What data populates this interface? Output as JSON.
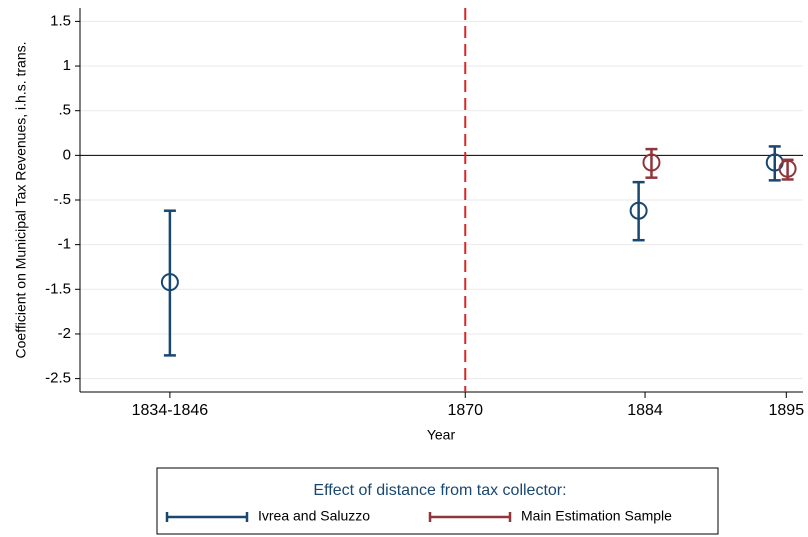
{
  "chart_data": {
    "type": "errorbar",
    "y_label": "Coefficient on Municipal Tax Revenues, i.h.s. trans.",
    "x_label": "Year",
    "xlim": [
      1840,
      1896.3
    ],
    "xticks": [
      {
        "value": 1847,
        "label": "1834-1846"
      },
      1870,
      1884,
      1895
    ],
    "ylim": [
      -2.65,
      1.65
    ],
    "yticks": [
      1.5,
      1,
      {
        "value": 0.5,
        "label": ".5"
      },
      0,
      {
        "value": -0.5,
        "label": "-.5"
      },
      -1,
      -1.5,
      -2,
      -2.5
    ],
    "grid": true,
    "hline": 0,
    "vline": {
      "x": 1870,
      "color": "#d62728"
    },
    "legend_title": "Effect of distance from tax collector:",
    "legend": "bottom",
    "series": [
      {
        "name": "Ivrea and Saluzzo",
        "color": "#1a476f",
        "x": [
          1847,
          1883.5,
          1894.1
        ],
        "values": [
          -1.42,
          -0.62,
          -0.08
        ],
        "lower": [
          -2.24,
          -0.95,
          -0.28
        ],
        "upper": [
          -0.62,
          -0.3,
          0.1
        ]
      },
      {
        "name": "Main Estimation Sample",
        "color": "#90353b",
        "x": [
          1884.5,
          1895.1
        ],
        "values": [
          -0.08,
          -0.15
        ],
        "lower": [
          -0.25,
          -0.27
        ],
        "upper": [
          0.07,
          -0.05
        ]
      }
    ]
  }
}
